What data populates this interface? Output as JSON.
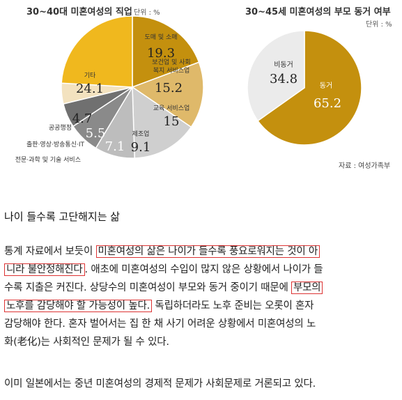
{
  "chart_data": [
    {
      "type": "pie",
      "title": "30~40대 미혼여성의 직업",
      "unit": "단위 : %",
      "slices": [
        {
          "label": "도매 및 소매",
          "value": 19.3,
          "color": "#c4900e"
        },
        {
          "label": "보건업 및 사회 복지 서비스업",
          "value": 15.2,
          "color": "#dfb96a"
        },
        {
          "label": "교육 서비스업",
          "value": 15.0,
          "color": "#cfcfcf"
        },
        {
          "label": "제조업",
          "value": 9.1,
          "color": "#bdbdbd"
        },
        {
          "label": "전문·과학 및 기술 서비스",
          "value": 7.1,
          "color": "#8a8a8a"
        },
        {
          "label": "출판·영상·방송통신·IT",
          "value": 5.5,
          "color": "#707070"
        },
        {
          "label": "공공행정",
          "value": 4.7,
          "color": "#f3e2bf"
        },
        {
          "label": "기타",
          "value": 24.1,
          "color": "#f0b81e"
        }
      ]
    },
    {
      "type": "pie",
      "title": "30~45세 미혼여성의 부모 동거 여부",
      "unit": "단위 : %",
      "source": "자료 : 여성가족부",
      "slices": [
        {
          "label": "동거",
          "value": 65.2,
          "color": "#c4900e"
        },
        {
          "label": "비동거",
          "value": 34.8,
          "color": "#ebebeb"
        }
      ]
    }
  ],
  "article": {
    "heading": "나이 들수록 고단해지는 삶",
    "p1": {
      "l1a": "통계 자료에서 보듯이",
      "l1b": "미혼여성의 삶은 나이가 들수록 풍요로워지는 것이 아",
      "l2a": "니라 불안정해진다",
      "l2b": ". 애초에 미혼여성의 수입이 많지 않은 상황에서 나이가 들",
      "l3a": "수록 지출은 커진다. 상당수의 미혼여성이 부모와 동거 중이기 때문에",
      "l3b": "부모의",
      "l4a": "노후를 감당해야 할 가능성이 높다.",
      "l4b": " 독립하더라도 노후 준비는 오롯이 혼자",
      "l5": "감당해야 한다. 혼자 벌어서는 집 한 채 사기 어려운 상황에서 미혼여성의 노",
      "l6": "화(老化)는 사회적인 문제가 될 수 있다."
    },
    "p2": "이미 일본에서는 중년 미혼여성의 경제적 문제가 사회문제로 거론되고 있다."
  }
}
